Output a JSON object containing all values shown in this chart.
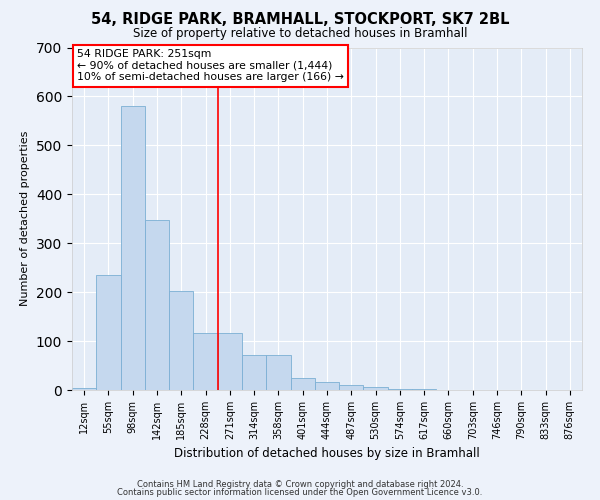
{
  "title": "54, RIDGE PARK, BRAMHALL, STOCKPORT, SK7 2BL",
  "subtitle": "Size of property relative to detached houses in Bramhall",
  "xlabel": "Distribution of detached houses by size in Bramhall",
  "ylabel": "Number of detached properties",
  "bar_color": "#c5d8ee",
  "bar_edge_color": "#7bafd4",
  "annotation_text": "54 RIDGE PARK: 251sqm\n← 90% of detached houses are smaller (1,444)\n10% of semi-detached houses are larger (166) →",
  "categories": [
    "12sqm",
    "55sqm",
    "98sqm",
    "142sqm",
    "185sqm",
    "228sqm",
    "271sqm",
    "314sqm",
    "358sqm",
    "401sqm",
    "444sqm",
    "487sqm",
    "530sqm",
    "574sqm",
    "617sqm",
    "660sqm",
    "703sqm",
    "746sqm",
    "790sqm",
    "833sqm",
    "876sqm"
  ],
  "values": [
    5,
    235,
    580,
    347,
    203,
    116,
    116,
    72,
    72,
    25,
    16,
    10,
    7,
    2,
    2,
    1,
    1,
    0,
    0,
    0,
    0
  ],
  "red_line_index": 6,
  "ylim": [
    0,
    700
  ],
  "yticks": [
    0,
    100,
    200,
    300,
    400,
    500,
    600,
    700
  ],
  "footer_line1": "Contains HM Land Registry data © Crown copyright and database right 2024.",
  "footer_line2": "Contains public sector information licensed under the Open Government Licence v3.0.",
  "bg_color": "#edf2fa",
  "plot_bg_color": "#e4ecf7"
}
